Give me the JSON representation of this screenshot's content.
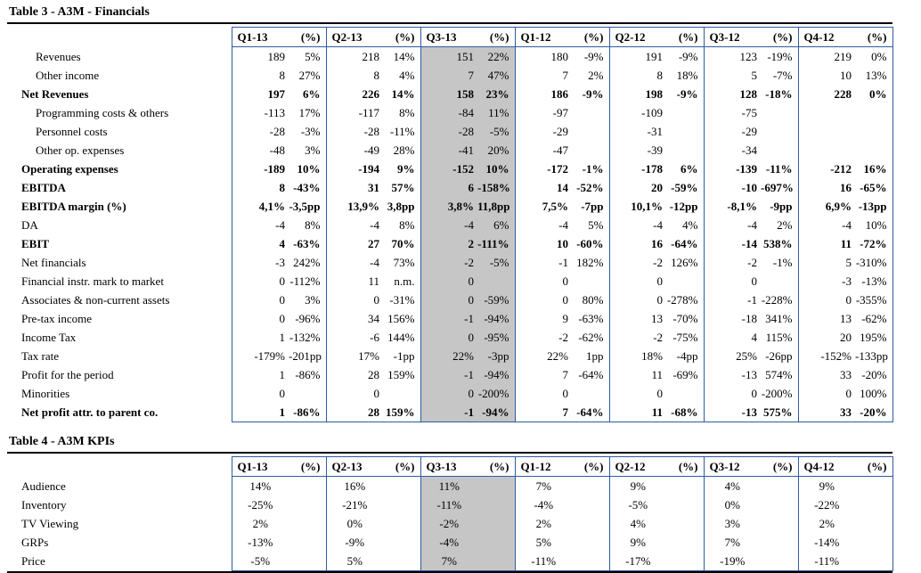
{
  "colors": {
    "border_blue": "#2f5b9f",
    "highlight_gray": "#c6c6c6",
    "rule_black": "#000000"
  },
  "table3": {
    "title": "Table 3 - A3M - Financials",
    "quarters": [
      "Q1-13",
      "Q2-13",
      "Q3-13",
      "Q1-12",
      "Q2-12",
      "Q3-12",
      "Q4-12"
    ],
    "pct_label": "(%)",
    "highlight_quarter": "Q3-13",
    "highlight_group": 2,
    "rows": [
      {
        "label": "Revenues",
        "indent": 1,
        "bold": false,
        "values": [
          "189",
          "5%",
          "218",
          "14%",
          "151",
          "22%",
          "180",
          "-9%",
          "191",
          "-9%",
          "123",
          "-19%",
          "219",
          "0%"
        ]
      },
      {
        "label": "Other income",
        "indent": 1,
        "bold": false,
        "values": [
          "8",
          "27%",
          "8",
          "4%",
          "7",
          "47%",
          "7",
          "2%",
          "8",
          "18%",
          "5",
          "-7%",
          "10",
          "13%"
        ]
      },
      {
        "label": "Net Revenues",
        "indent": 0,
        "bold": true,
        "values": [
          "197",
          "6%",
          "226",
          "14%",
          "158",
          "23%",
          "186",
          "-9%",
          "198",
          "-9%",
          "128",
          "-18%",
          "228",
          "0%"
        ]
      },
      {
        "label": "Programming costs & others",
        "indent": 1,
        "bold": false,
        "values": [
          "-113",
          "17%",
          "-117",
          "8%",
          "-84",
          "11%",
          "-97",
          "",
          "-109",
          "",
          "-75",
          "",
          "",
          ""
        ]
      },
      {
        "label": "Personnel costs",
        "indent": 1,
        "bold": false,
        "values": [
          "-28",
          "-3%",
          "-28",
          "-11%",
          "-28",
          "-5%",
          "-29",
          "",
          "-31",
          "",
          "-29",
          "",
          "",
          ""
        ]
      },
      {
        "label": "Other op. expenses",
        "indent": 1,
        "bold": false,
        "values": [
          "-48",
          "3%",
          "-49",
          "28%",
          "-41",
          "20%",
          "-47",
          "",
          "-39",
          "",
          "-34",
          "",
          "",
          ""
        ]
      },
      {
        "label": "Operating expenses",
        "indent": 0,
        "bold": true,
        "values": [
          "-189",
          "10%",
          "-194",
          "9%",
          "-152",
          "10%",
          "-172",
          "-1%",
          "-178",
          "6%",
          "-139",
          "-11%",
          "-212",
          "16%"
        ]
      },
      {
        "label": "EBITDA",
        "indent": 0,
        "bold": true,
        "values": [
          "8",
          "-43%",
          "31",
          "57%",
          "6",
          "-158%",
          "14",
          "-52%",
          "20",
          "-59%",
          "-10",
          "-697%",
          "16",
          "-65%"
        ]
      },
      {
        "label": "EBITDA margin (%)",
        "indent": 0,
        "bold": true,
        "values": [
          "4,1%",
          "-3,5pp",
          "13,9%",
          "3,8pp",
          "3,8%",
          "11,8pp",
          "7,5%",
          "-7pp",
          "10,1%",
          "-12pp",
          "-8,1%",
          "-9pp",
          "6,9%",
          "-13pp"
        ]
      },
      {
        "label": "DA",
        "indent": 0,
        "bold": false,
        "values": [
          "-4",
          "8%",
          "-4",
          "8%",
          "-4",
          "6%",
          "-4",
          "5%",
          "-4",
          "4%",
          "-4",
          "2%",
          "-4",
          "10%"
        ]
      },
      {
        "label": "EBIT",
        "indent": 0,
        "bold": true,
        "values": [
          "4",
          "-63%",
          "27",
          "70%",
          "2",
          "-111%",
          "10",
          "-60%",
          "16",
          "-64%",
          "-14",
          "538%",
          "11",
          "-72%"
        ]
      },
      {
        "label": "Net financials",
        "indent": 0,
        "bold": false,
        "values": [
          "-3",
          "242%",
          "-4",
          "73%",
          "-2",
          "-5%",
          "-1",
          "182%",
          "-2",
          "126%",
          "-2",
          "-1%",
          "5",
          "-310%"
        ]
      },
      {
        "label": "Financial instr. mark to market",
        "indent": 0,
        "bold": false,
        "values": [
          "0",
          "-112%",
          "11",
          "n.m.",
          "0",
          "",
          "0",
          "",
          "0",
          "",
          "0",
          "",
          "-3",
          "-13%"
        ]
      },
      {
        "label": "Associates & non-current assets",
        "indent": 0,
        "bold": false,
        "values": [
          "0",
          "3%",
          "0",
          "-31%",
          "0",
          "-59%",
          "0",
          "80%",
          "0",
          "-278%",
          "-1",
          "-228%",
          "0",
          "-355%"
        ]
      },
      {
        "label": "Pre-tax income",
        "indent": 0,
        "bold": false,
        "values": [
          "0",
          "-96%",
          "34",
          "156%",
          "-1",
          "-94%",
          "9",
          "-63%",
          "13",
          "-70%",
          "-18",
          "341%",
          "13",
          "-62%"
        ]
      },
      {
        "label": "Income Tax",
        "indent": 0,
        "bold": false,
        "values": [
          "1",
          "-132%",
          "-6",
          "144%",
          "0",
          "-95%",
          "-2",
          "-62%",
          "-2",
          "-75%",
          "4",
          "115%",
          "20",
          "195%"
        ]
      },
      {
        "label": "Tax rate",
        "indent": 0,
        "bold": false,
        "values": [
          "-179%",
          "-201pp",
          "17%",
          "-1pp",
          "22%",
          "-3pp",
          "22%",
          "1pp",
          "18%",
          "-4pp",
          "25%",
          "-26pp",
          "-152%",
          "-133pp"
        ]
      },
      {
        "label": "Profit for the period",
        "indent": 0,
        "bold": false,
        "values": [
          "1",
          "-86%",
          "28",
          "159%",
          "-1",
          "-94%",
          "7",
          "-64%",
          "11",
          "-69%",
          "-13",
          "574%",
          "33",
          "-20%"
        ]
      },
      {
        "label": "Minorities",
        "indent": 0,
        "bold": false,
        "values": [
          "0",
          "",
          "0",
          "",
          "0",
          "-200%",
          "0",
          "",
          "0",
          "",
          "0",
          "-200%",
          "0",
          "100%"
        ]
      },
      {
        "label": "Net profit attr. to parent co.",
        "indent": 0,
        "bold": true,
        "values": [
          "1",
          "-86%",
          "28",
          "159%",
          "-1",
          "-94%",
          "7",
          "-64%",
          "11",
          "-68%",
          "-13",
          "575%",
          "33",
          "-20%"
        ]
      }
    ]
  },
  "table4": {
    "title": "Table 4 - A3M KPIs",
    "quarters": [
      "Q1-13",
      "Q2-13",
      "Q3-13",
      "Q1-12",
      "Q2-12",
      "Q3-12",
      "Q4-12"
    ],
    "pct_label": "(%)",
    "highlight_quarter": "Q3-13",
    "highlight_group": 2,
    "rows": [
      {
        "label": "Audience",
        "indent": 0,
        "bold": false,
        "values": [
          "14%",
          "",
          "16%",
          "",
          "11%",
          "",
          "7%",
          "",
          "9%",
          "",
          "4%",
          "",
          "9%",
          ""
        ]
      },
      {
        "label": "Inventory",
        "indent": 0,
        "bold": false,
        "values": [
          "-25%",
          "",
          "-21%",
          "",
          "-11%",
          "",
          "-4%",
          "",
          "-5%",
          "",
          "0%",
          "",
          "-22%",
          ""
        ]
      },
      {
        "label": "TV Viewing",
        "indent": 0,
        "bold": false,
        "values": [
          "2%",
          "",
          "0%",
          "",
          "-2%",
          "",
          "2%",
          "",
          "4%",
          "",
          "3%",
          "",
          "2%",
          ""
        ]
      },
      {
        "label": "GRPs",
        "indent": 0,
        "bold": false,
        "values": [
          "-13%",
          "",
          "-9%",
          "",
          "-4%",
          "",
          "5%",
          "",
          "9%",
          "",
          "7%",
          "",
          "-14%",
          ""
        ]
      },
      {
        "label": "Price",
        "indent": 0,
        "bold": false,
        "values": [
          "-5%",
          "",
          "5%",
          "",
          "7%",
          "",
          "-11%",
          "",
          "-17%",
          "",
          "-19%",
          "",
          "-11%",
          ""
        ]
      }
    ]
  }
}
